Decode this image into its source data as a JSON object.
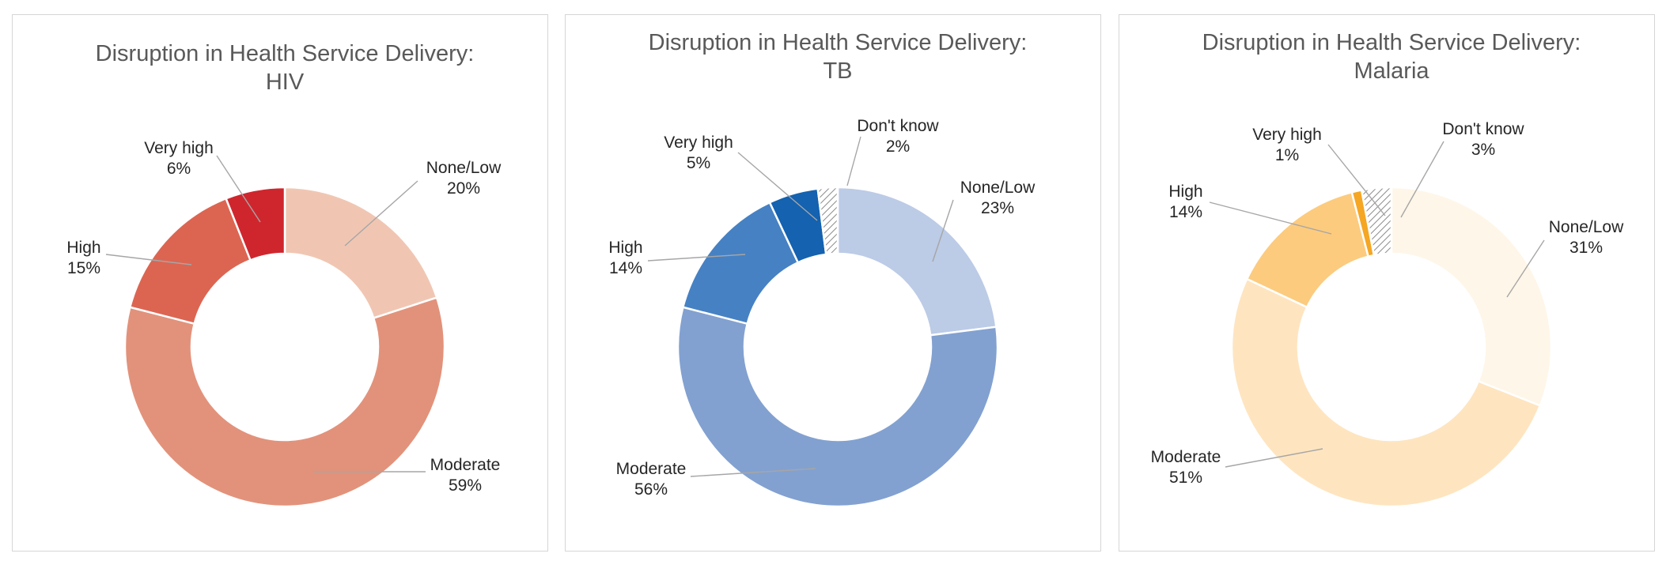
{
  "chart_data": [
    {
      "type": "pie",
      "title": [
        "Disruption in Health Service Delivery:",
        "HIV"
      ],
      "slices": [
        {
          "label": "None/Low",
          "pct_label": "20%",
          "value": 20,
          "color": "#f0c6b3"
        },
        {
          "label": "Moderate",
          "pct_label": "59%",
          "value": 59,
          "color": "#e2927b"
        },
        {
          "label": "High",
          "pct_label": "15%",
          "value": 15,
          "color": "#dc6552"
        },
        {
          "label": "Very high",
          "pct_label": "6%",
          "value": 6,
          "color": "#cf262e"
        }
      ]
    },
    {
      "type": "pie",
      "title": [
        "Disruption in Health Service Delivery:",
        "TB"
      ],
      "slices": [
        {
          "label": "None/Low",
          "pct_label": "23%",
          "value": 23,
          "color": "#bccbe6"
        },
        {
          "label": "Moderate",
          "pct_label": "56%",
          "value": 56,
          "color": "#82a1d0"
        },
        {
          "label": "High",
          "pct_label": "14%",
          "value": 14,
          "color": "#4681c3"
        },
        {
          "label": "Very high",
          "pct_label": "5%",
          "value": 5,
          "color": "#1462b0"
        },
        {
          "label": "Don't know",
          "pct_label": "2%",
          "value": 2,
          "color": "hatch"
        }
      ]
    },
    {
      "type": "pie",
      "title": [
        "Disruption in Health Service Delivery:",
        "Malaria"
      ],
      "slices": [
        {
          "label": "None/Low",
          "pct_label": "31%",
          "value": 31,
          "color": "#fef6e8"
        },
        {
          "label": "Moderate",
          "pct_label": "51%",
          "value": 51,
          "color": "#fee5c0"
        },
        {
          "label": "High",
          "pct_label": "14%",
          "value": 14,
          "color": "#fccb7e"
        },
        {
          "label": "Very high",
          "pct_label": "1%",
          "value": 1,
          "color": "#f5a623"
        },
        {
          "label": "Don't know",
          "pct_label": "3%",
          "value": 3,
          "color": "hatch"
        }
      ]
    }
  ]
}
